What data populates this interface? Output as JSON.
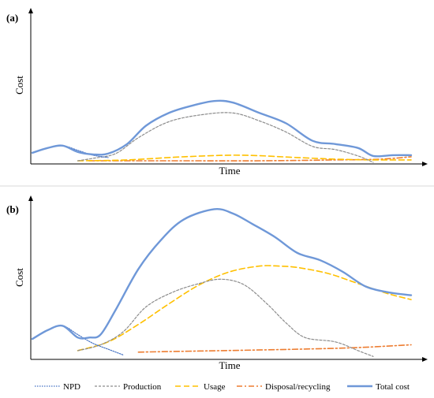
{
  "colors": {
    "npd": "#4472c4",
    "production": "#8c8c8c",
    "usage": "#ffc000",
    "disposal": "#ed7d31",
    "total": "#6f98d8",
    "separator": "#d9d9d9"
  },
  "legend": {
    "npd": "NPD",
    "production": "Production",
    "usage": "Usage",
    "disposal": "Disposal/recycling",
    "total": "Total cost"
  },
  "chart_data": [
    {
      "type": "line",
      "panel_label": "(a)",
      "xlabel": "Time",
      "ylabel": "Cost",
      "xlim": [
        0,
        100
      ],
      "ylim": [
        0,
        100
      ],
      "grid": false,
      "legend_position": "bottom",
      "series": [
        {
          "name": "NPD",
          "key": "npd",
          "x": [
            0,
            4,
            8,
            12,
            16,
            20
          ],
          "y": [
            14,
            20,
            23,
            17,
            11,
            8
          ]
        },
        {
          "name": "Production",
          "key": "production",
          "x": [
            12,
            16,
            22,
            28,
            36,
            45,
            53,
            60,
            67,
            74,
            80,
            86,
            90
          ],
          "y": [
            4,
            7,
            13,
            33,
            53,
            62,
            64,
            54,
            40,
            22,
            18,
            10,
            2
          ]
        },
        {
          "name": "Usage",
          "key": "usage",
          "x": [
            12,
            25,
            40,
            55,
            70,
            80,
            90,
            100
          ],
          "y": [
            4,
            5,
            9,
            11,
            8,
            6,
            5,
            5
          ]
        },
        {
          "name": "Disposal/recycling",
          "key": "disposal",
          "x": [
            15,
            40,
            60,
            80,
            92,
            100
          ],
          "y": [
            4,
            4,
            4,
            5,
            6,
            9
          ]
        },
        {
          "name": "Total cost",
          "key": "total",
          "x": [
            0,
            4,
            8,
            12,
            16,
            20,
            25,
            30,
            36,
            42,
            48,
            53,
            60,
            67,
            74,
            80,
            86,
            90,
            95,
            100
          ],
          "y": [
            14,
            20,
            23,
            15,
            12,
            13,
            25,
            48,
            64,
            73,
            79,
            77,
            64,
            51,
            29,
            25,
            20,
            10,
            11,
            11
          ]
        }
      ]
    },
    {
      "type": "line",
      "panel_label": "(b)",
      "xlabel": "Time",
      "ylabel": "Cost",
      "xlim": [
        0,
        100
      ],
      "ylim": [
        0,
        100
      ],
      "grid": false,
      "legend_position": "bottom",
      "series": [
        {
          "name": "NPD",
          "key": "npd",
          "x": [
            0,
            4,
            8,
            12,
            16,
            20,
            24
          ],
          "y": [
            14,
            20,
            23,
            17,
            11,
            7,
            3
          ]
        },
        {
          "name": "Production",
          "key": "production",
          "x": [
            12,
            18,
            24,
            30,
            37,
            44,
            50,
            56,
            62,
            67,
            72,
            80,
            86,
            90
          ],
          "y": [
            6,
            10,
            19,
            36,
            46,
            52,
            55,
            51,
            38,
            25,
            15,
            12,
            6,
            2
          ]
        },
        {
          "name": "Usage",
          "key": "usage",
          "x": [
            12,
            20,
            28,
            36,
            44,
            52,
            60,
            65,
            70,
            78,
            86,
            94,
            100
          ],
          "y": [
            6,
            12,
            24,
            38,
            51,
            60,
            64,
            64,
            63,
            59,
            52,
            45,
            41
          ]
        },
        {
          "name": "Disposal/recycling",
          "key": "disposal",
          "x": [
            28,
            50,
            70,
            85,
            100
          ],
          "y": [
            5,
            6,
            7,
            8,
            10
          ]
        },
        {
          "name": "Total cost",
          "key": "total",
          "x": [
            0,
            4,
            8,
            12,
            15,
            18,
            22,
            28,
            34,
            40,
            48,
            53,
            58,
            64,
            70,
            76,
            82,
            88,
            94,
            100
          ],
          "y": [
            14,
            20,
            23,
            15,
            15,
            17,
            34,
            62,
            82,
            96,
            103,
            100,
            93,
            84,
            73,
            68,
            60,
            50,
            46,
            44
          ]
        }
      ]
    }
  ]
}
